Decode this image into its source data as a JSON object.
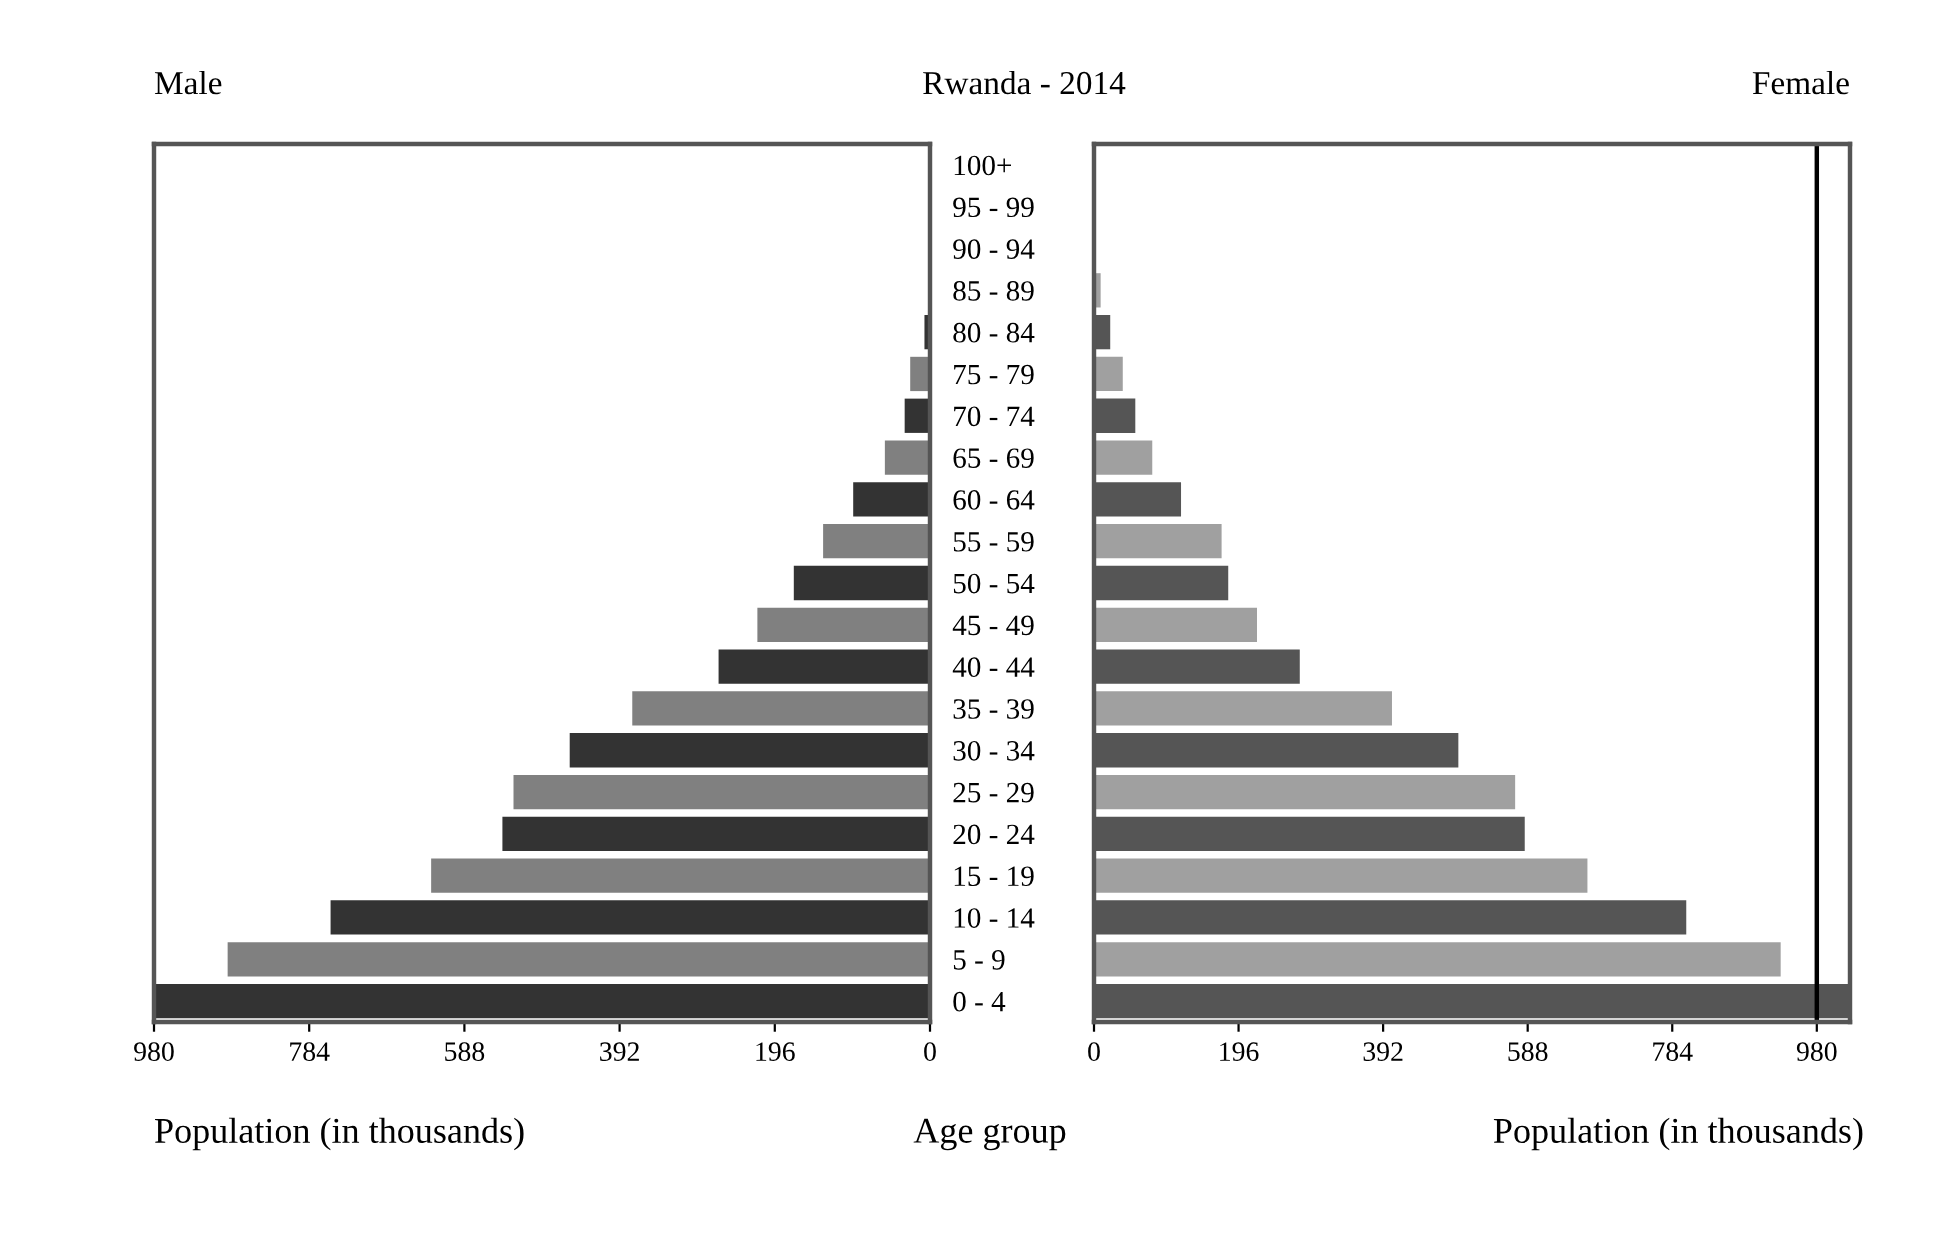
{
  "chart_data": [
    {
      "type": "bar",
      "orientation": "horizontal",
      "title": "Rwanda - 2014",
      "xlabel": "Population (in thousands)",
      "annotations": [
        "Male"
      ],
      "categories": [
        "100+",
        "95 - 99",
        "90 - 94",
        "85 - 89",
        "80 - 84",
        "75 - 79",
        "70 - 74",
        "65 - 69",
        "60 - 64",
        "55 - 59",
        "50 - 54",
        "45 - 49",
        "40 - 44",
        "35 - 39",
        "30 - 34",
        "25 - 29",
        "20 - 24",
        "15 - 19",
        "10 - 14",
        "5 - 9",
        "0 - 4"
      ],
      "values": [
        1,
        1,
        2,
        null,
        7,
        25,
        32,
        57,
        97,
        135,
        172,
        218,
        267,
        376,
        455,
        526,
        540,
        630,
        757,
        887,
        980
      ],
      "colors": [
        "#333333",
        "#808080",
        "#333333",
        "#808080",
        "#333333",
        "#808080",
        "#333333",
        "#808080",
        "#333333",
        "#808080",
        "#333333",
        "#808080",
        "#333333",
        "#808080",
        "#333333",
        "#808080",
        "#333333",
        "#808080",
        "#333333",
        "#808080",
        "#333333"
      ],
      "xlim": [
        980,
        0
      ],
      "xticks": [
        980,
        784,
        588,
        392,
        196,
        0
      ],
      "grid": false,
      "legend": false
    },
    {
      "type": "bar",
      "orientation": "horizontal",
      "xlabel": "Population (in thousands)",
      "annotations": [
        "Female",
        "Age group"
      ],
      "categories": [
        null,
        null,
        null,
        null,
        null,
        null,
        null,
        null,
        null,
        null,
        null,
        null,
        null,
        null,
        null,
        null,
        null,
        null,
        null,
        null,
        null
      ],
      "values": [
        null,
        null,
        null,
        9,
        22,
        39,
        56,
        79,
        118,
        173,
        182,
        221,
        279,
        404,
        494,
        571,
        584,
        669,
        803,
        931,
        1025
      ],
      "colors": [
        "#555555",
        "#a0a0a0",
        "#555555",
        "#a0a0a0",
        "#555555",
        "#a0a0a0",
        "#555555",
        "#a0a0a0",
        "#555555",
        "#a0a0a0",
        "#555555",
        "#a0a0a0",
        "#555555",
        "#a0a0a0",
        "#555555",
        "#a0a0a0",
        "#555555",
        "#a0a0a0",
        "#555555",
        "#a0a0a0",
        "#555555"
      ],
      "xlim": [
        0,
        1025
      ],
      "xticks": [
        0,
        196,
        392,
        588,
        784,
        980
      ],
      "tick_labels": "x",
      "ref_lines": [
        {
          "axis": "x",
          "value": 980,
          "color": "#000000"
        }
      ],
      "grid": false,
      "legend": false
    }
  ]
}
